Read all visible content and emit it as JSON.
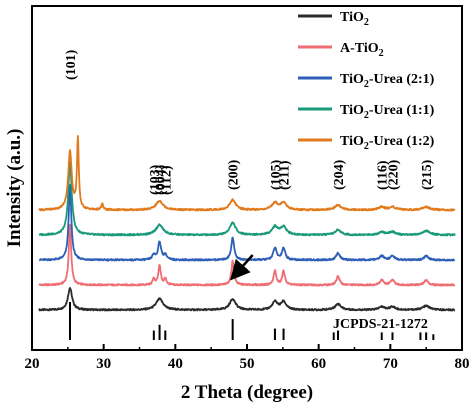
{
  "colors": {
    "TiO2": "#2b2b2b",
    "A-TiO2": "#ee6e73",
    "urea21": "#2e5fb8",
    "urea11": "#1a9a7a",
    "urea12": "#e07a1c"
  },
  "chart_data": {
    "type": "line",
    "title": "",
    "xlabel": "2 Theta (degree)",
    "ylabel": "Intensity (a.u.)",
    "xlim": [
      20,
      80
    ],
    "xticks": [
      "20",
      "30",
      "40",
      "50",
      "60",
      "70",
      "80"
    ],
    "yticks_shown": false,
    "grid": false,
    "legend_position": "top-right",
    "legend": [
      {
        "label_main": "TiO",
        "label_sub": "2",
        "label_tail": "",
        "color_key": "TiO2"
      },
      {
        "label_main": "A-TiO",
        "label_sub": "2",
        "label_tail": "",
        "color_key": "A-TiO2"
      },
      {
        "label_main": "TiO",
        "label_sub": "2",
        "label_tail": "-Urea (2:1)",
        "color_key": "urea21"
      },
      {
        "label_main": "TiO",
        "label_sub": "2",
        "label_tail": "-Urea (1:1)",
        "color_key": "urea11"
      },
      {
        "label_main": "TiO",
        "label_sub": "2",
        "label_tail": "-Urea (1:2)",
        "color_key": "urea12"
      }
    ],
    "peaks": [
      {
        "label": "(101)",
        "x": 25.3
      },
      {
        "label": "(103)",
        "x": 37.0
      },
      {
        "label": "(004)",
        "x": 37.8
      },
      {
        "label": "(112)",
        "x": 38.6
      },
      {
        "label": "(200)",
        "x": 48.0
      },
      {
        "label": "(105)",
        "x": 53.9
      },
      {
        "label": "(211)",
        "x": 55.1
      },
      {
        "label": "(204)",
        "x": 62.7
      },
      {
        "label": "(116)",
        "x": 68.8
      },
      {
        "label": "(220)",
        "x": 70.3
      },
      {
        "label": "(215)",
        "x": 75.0
      }
    ],
    "reference": {
      "label": "JCPDS-21-1272",
      "lines": [
        {
          "x": 25.3,
          "intensity": 1.0
        },
        {
          "x": 37.0,
          "intensity": 0.25
        },
        {
          "x": 37.8,
          "intensity": 0.4
        },
        {
          "x": 38.6,
          "intensity": 0.25
        },
        {
          "x": 48.0,
          "intensity": 0.55
        },
        {
          "x": 53.9,
          "intensity": 0.3
        },
        {
          "x": 55.1,
          "intensity": 0.3
        },
        {
          "x": 62.1,
          "intensity": 0.2
        },
        {
          "x": 62.7,
          "intensity": 0.25
        },
        {
          "x": 68.8,
          "intensity": 0.2
        },
        {
          "x": 70.3,
          "intensity": 0.2
        },
        {
          "x": 74.2,
          "intensity": 0.2
        },
        {
          "x": 75.0,
          "intensity": 0.2
        },
        {
          "x": 76.0,
          "intensity": 0.15
        }
      ]
    },
    "series": [
      {
        "key": "TiO2",
        "offset": 0,
        "peaks": [
          {
            "x": 25.3,
            "h": 22,
            "w": 0.35
          },
          {
            "x": 37.8,
            "h": 11,
            "w": 0.6
          },
          {
            "x": 48.0,
            "h": 11,
            "w": 0.5
          },
          {
            "x": 53.9,
            "h": 8,
            "w": 0.45
          },
          {
            "x": 55.1,
            "h": 8,
            "w": 0.45
          },
          {
            "x": 62.7,
            "h": 6,
            "w": 0.5
          },
          {
            "x": 68.8,
            "h": 3,
            "w": 0.5
          },
          {
            "x": 70.3,
            "h": 3,
            "w": 0.5
          },
          {
            "x": 75.0,
            "h": 4,
            "w": 0.6
          }
        ]
      },
      {
        "key": "A-TiO2",
        "offset": 1,
        "peaks": [
          {
            "x": 25.3,
            "h": 60,
            "w": 0.2
          },
          {
            "x": 37.0,
            "h": 6,
            "w": 0.2
          },
          {
            "x": 37.8,
            "h": 20,
            "w": 0.2
          },
          {
            "x": 38.6,
            "h": 6,
            "w": 0.2
          },
          {
            "x": 48.0,
            "h": 24,
            "w": 0.22
          },
          {
            "x": 53.9,
            "h": 14,
            "w": 0.22
          },
          {
            "x": 55.1,
            "h": 14,
            "w": 0.22
          },
          {
            "x": 62.7,
            "h": 9,
            "w": 0.25
          },
          {
            "x": 68.8,
            "h": 5,
            "w": 0.3
          },
          {
            "x": 70.3,
            "h": 5,
            "w": 0.3
          },
          {
            "x": 75.0,
            "h": 5,
            "w": 0.3
          }
        ]
      },
      {
        "key": "urea21",
        "offset": 2,
        "peaks": [
          {
            "x": 25.3,
            "h": 75,
            "w": 0.22
          },
          {
            "x": 37.0,
            "h": 5,
            "w": 0.25
          },
          {
            "x": 37.8,
            "h": 18,
            "w": 0.25
          },
          {
            "x": 38.6,
            "h": 5,
            "w": 0.25
          },
          {
            "x": 48.0,
            "h": 22,
            "w": 0.25
          },
          {
            "x": 53.9,
            "h": 12,
            "w": 0.28
          },
          {
            "x": 55.1,
            "h": 12,
            "w": 0.28
          },
          {
            "x": 62.7,
            "h": 7,
            "w": 0.3
          },
          {
            "x": 68.8,
            "h": 4,
            "w": 0.35
          },
          {
            "x": 70.3,
            "h": 4,
            "w": 0.35
          },
          {
            "x": 75.0,
            "h": 4,
            "w": 0.35
          }
        ]
      },
      {
        "key": "urea11",
        "offset": 3,
        "peaks": [
          {
            "x": 25.3,
            "h": 72,
            "w": 0.3
          },
          {
            "x": 37.8,
            "h": 10,
            "w": 0.6
          },
          {
            "x": 48.0,
            "h": 12,
            "w": 0.5
          },
          {
            "x": 53.9,
            "h": 8,
            "w": 0.5
          },
          {
            "x": 55.1,
            "h": 8,
            "w": 0.5
          },
          {
            "x": 62.7,
            "h": 5,
            "w": 0.5
          },
          {
            "x": 68.8,
            "h": 3,
            "w": 0.5
          },
          {
            "x": 70.3,
            "h": 3,
            "w": 0.5
          },
          {
            "x": 75.0,
            "h": 4,
            "w": 0.6
          }
        ]
      },
      {
        "key": "urea12",
        "offset": 4,
        "peaks": [
          {
            "x": 25.3,
            "h": 58,
            "w": 0.3
          },
          {
            "x": 26.4,
            "h": 70,
            "w": 0.15
          },
          {
            "x": 29.8,
            "h": 6,
            "w": 0.15
          },
          {
            "x": 37.8,
            "h": 9,
            "w": 0.6
          },
          {
            "x": 48.0,
            "h": 10,
            "w": 0.5
          },
          {
            "x": 53.9,
            "h": 7,
            "w": 0.5
          },
          {
            "x": 55.1,
            "h": 7,
            "w": 0.5
          },
          {
            "x": 62.7,
            "h": 5,
            "w": 0.5
          },
          {
            "x": 68.8,
            "h": 3,
            "w": 0.5
          },
          {
            "x": 70.3,
            "h": 3,
            "w": 0.5
          },
          {
            "x": 75.0,
            "h": 3,
            "w": 0.6
          }
        ]
      }
    ],
    "annotation": {
      "type": "arrow",
      "points_to_series": "urea21",
      "x": 48.0
    }
  }
}
